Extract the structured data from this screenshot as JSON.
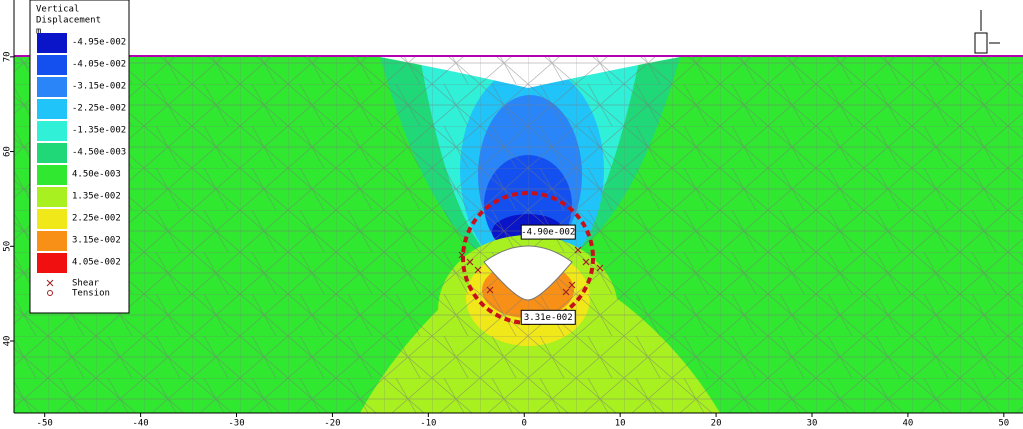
{
  "chart_data": {
    "type": "contour",
    "legend_title": [
      "Vertical",
      "Displacement"
    ],
    "legend_unit": "m",
    "levels": [
      {
        "value": -0.0495,
        "label": "-4.95e-002",
        "color": "#0a14c8"
      },
      {
        "value": -0.0405,
        "label": "-4.05e-002",
        "color": "#1450f0"
      },
      {
        "value": -0.0315,
        "label": "-3.15e-002",
        "color": "#2a86f8"
      },
      {
        "value": -0.0225,
        "label": "-2.25e-002",
        "color": "#20c4f8"
      },
      {
        "value": -0.0135,
        "label": "-1.35e-002",
        "color": "#30f0d8"
      },
      {
        "value": -0.0045,
        "label": "-4.50e-003",
        "color": "#20d878"
      },
      {
        "value": 0.0045,
        "label": "4.50e-003",
        "color": "#30e830"
      },
      {
        "value": 0.0135,
        "label": "1.35e-002",
        "color": "#a8f020"
      },
      {
        "value": 0.0225,
        "label": "2.25e-002",
        "color": "#f0e818"
      },
      {
        "value": 0.0315,
        "label": "3.15e-002",
        "color": "#f89018"
      },
      {
        "value": 0.0405,
        "label": "4.05e-002",
        "color": "#f01010"
      }
    ],
    "markers": [
      {
        "name": "Shear",
        "symbol": "x"
      },
      {
        "name": "Tension",
        "symbol": "o"
      }
    ],
    "annotations": [
      {
        "x": 0,
        "y": 51.5,
        "value": -0.049,
        "label": "-4.90e-002"
      },
      {
        "x": 0,
        "y": 42.5,
        "value": 0.0331,
        "label": "3.31e-002"
      }
    ],
    "xlim": [
      -53.2,
      52.0
    ],
    "ylim": [
      32.4,
      76.0
    ],
    "xticks": [
      -50,
      -40,
      -30,
      -20,
      -10,
      0,
      10,
      20,
      30,
      40,
      50
    ],
    "yticks": [
      40,
      50,
      60,
      70
    ]
  }
}
